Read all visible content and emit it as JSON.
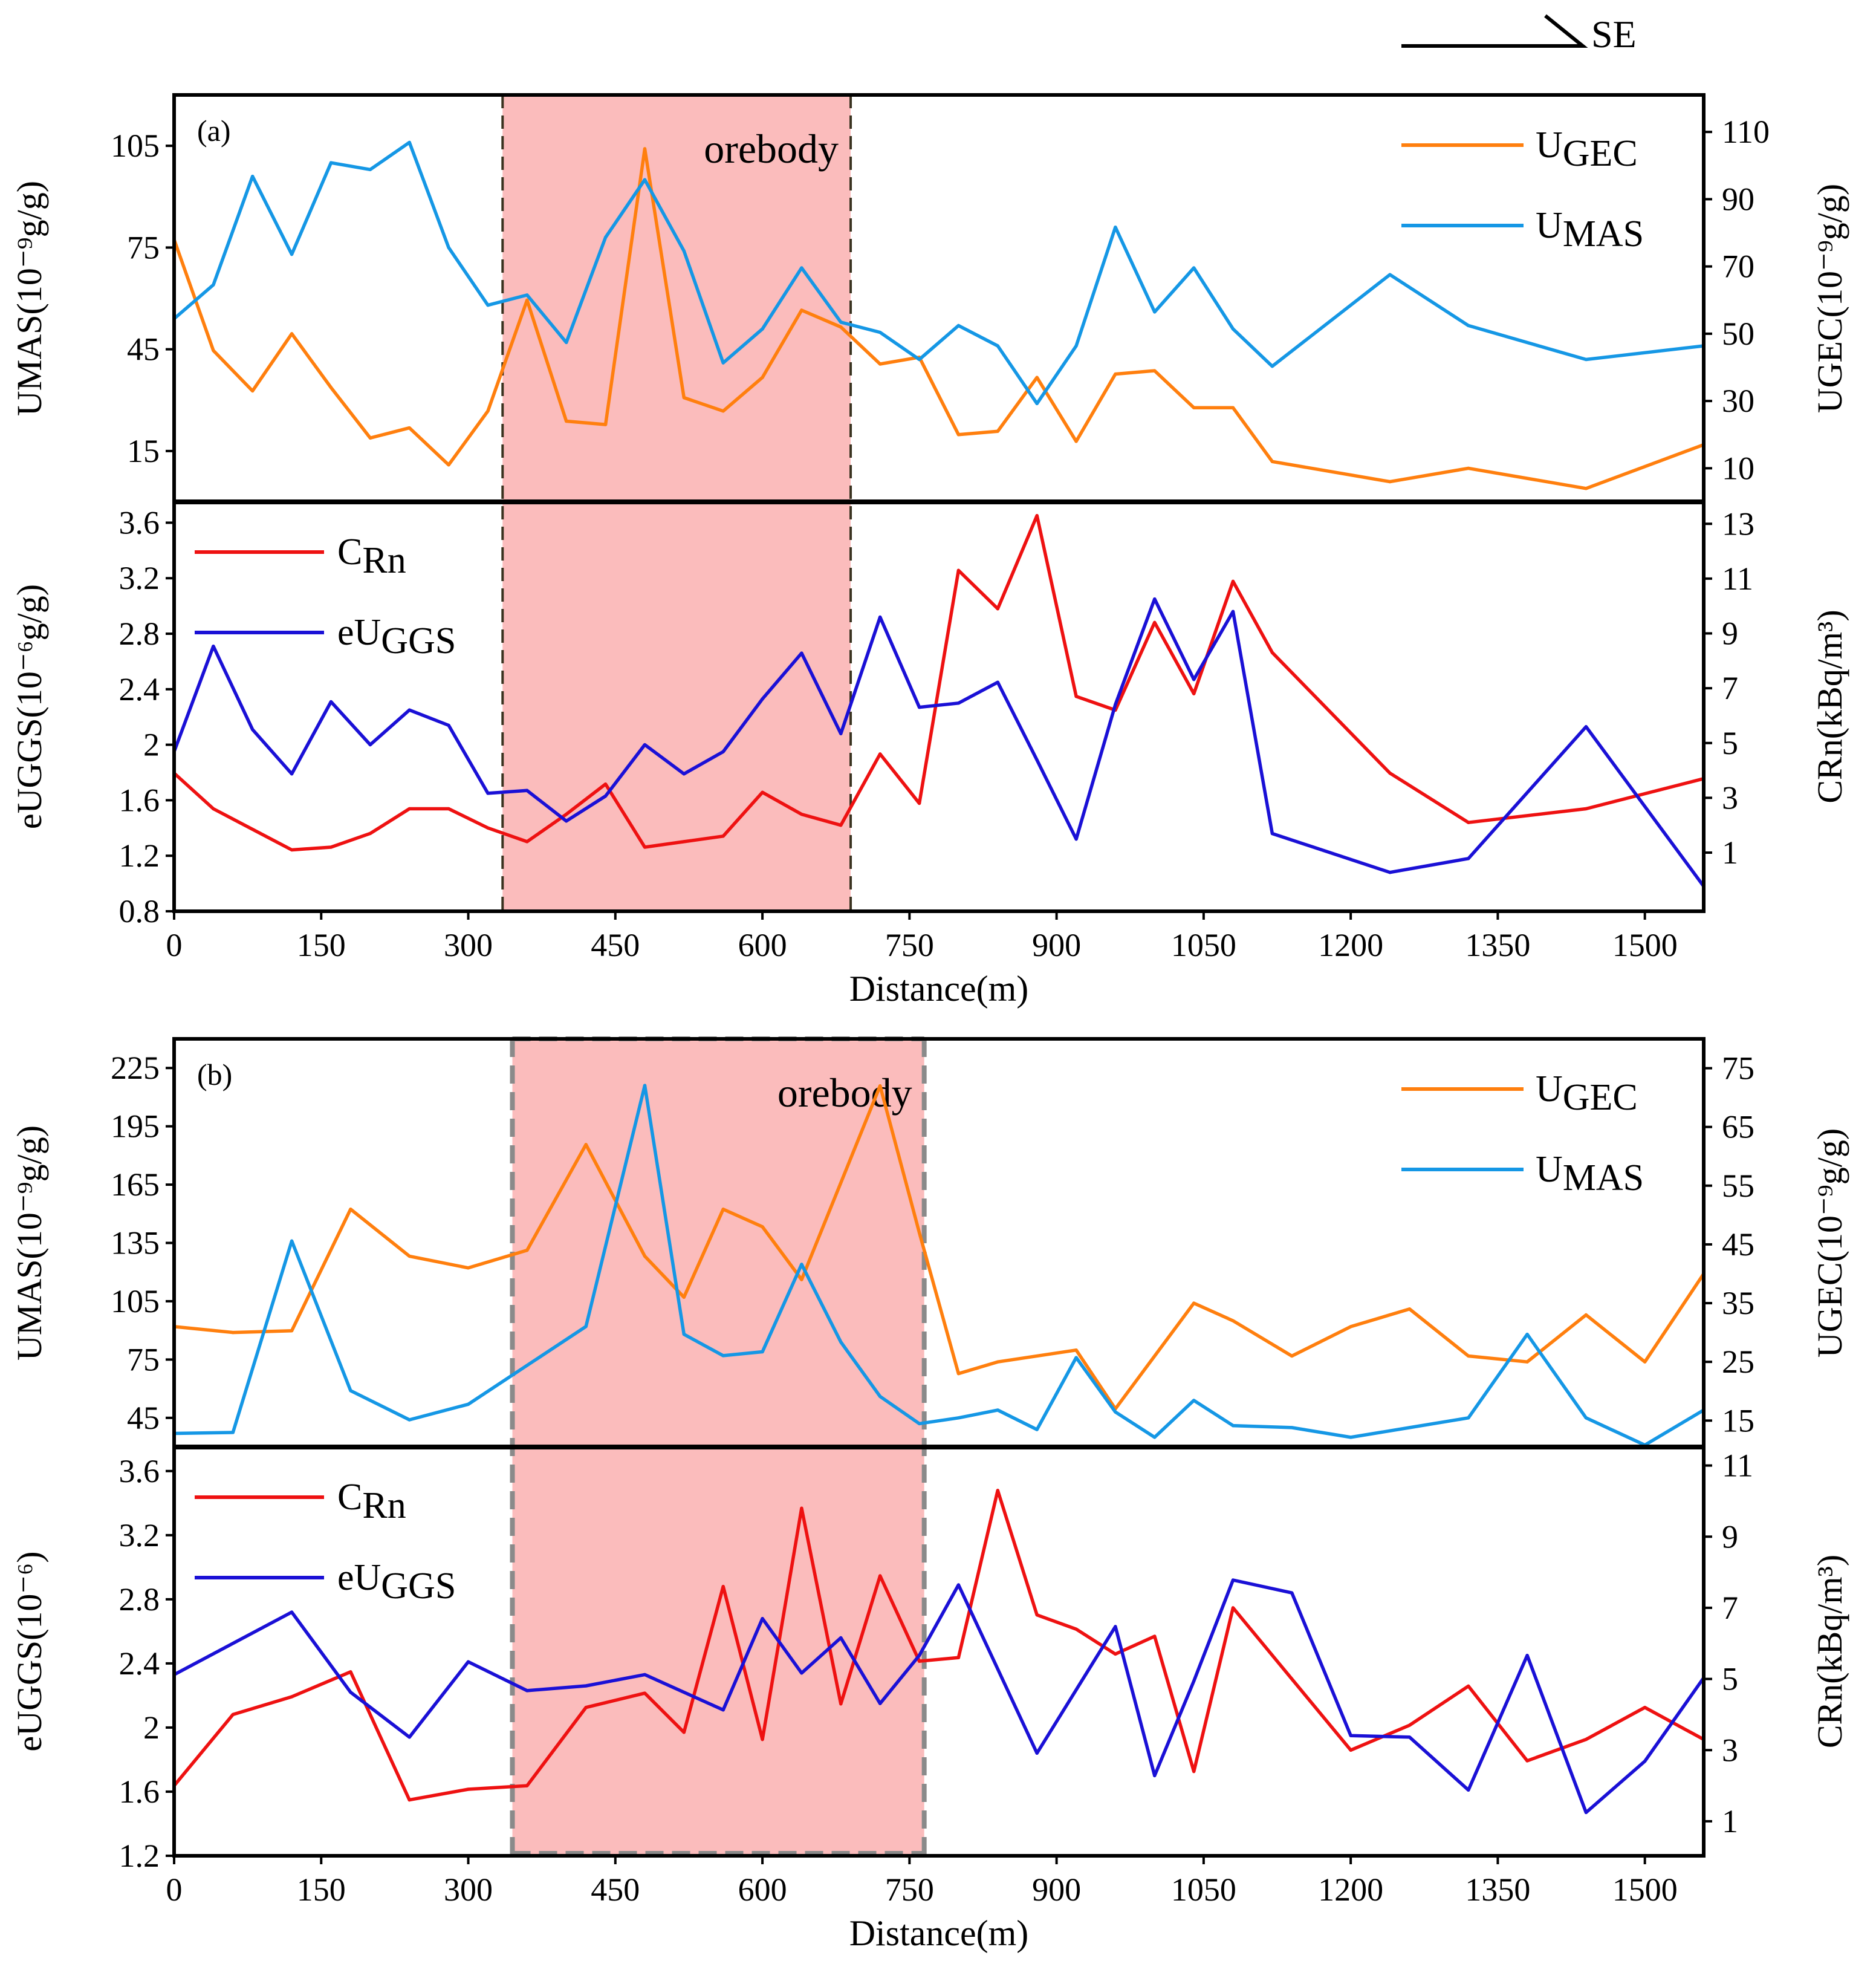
{
  "direction_label": "SE",
  "colors": {
    "u_gec": "#ff7f0e",
    "u_mas": "#1597e5",
    "c_rn": "#ee1111",
    "eu_ggs": "#1a10d6",
    "orebody_fill": "#fbbcbc",
    "frame": "#000000"
  },
  "chart_data": [
    {
      "type": "line",
      "panel_label": "(a)",
      "annotation": "orebody",
      "orebody_range": [
        335,
        690
      ],
      "xlabel": "Distance(m)",
      "x_ticks": [
        0,
        150,
        300,
        450,
        600,
        750,
        900,
        1050,
        1200,
        1350,
        1500
      ],
      "xlim": [
        0,
        1560
      ],
      "upper": {
        "left_axis": {
          "label": "UMAS(10⁻⁹g/g)",
          "ylim": [
            0,
            120
          ],
          "ticks": [
            15,
            45,
            75,
            105
          ]
        },
        "right_axis": {
          "label": "UGEC(10⁻⁹g/g)",
          "ylim": [
            0,
            121
          ],
          "ticks": [
            10,
            30,
            50,
            70,
            90,
            110
          ]
        },
        "series": [
          {
            "name": "UGEC",
            "legend": "U",
            "legend_sub": "GEC",
            "axis": "right",
            "color_key": "u_gec",
            "x": [
              0,
              40,
              80,
              120,
              160,
              200,
              240,
              280,
              320,
              360,
              400,
              440,
              480,
              520,
              560,
              600,
              640,
              680,
              720,
              760,
              800,
              840,
              880,
              920,
              960,
              1000,
              1040,
              1080,
              1120,
              1240,
              1320,
              1440,
              1560
            ],
            "y": [
              78,
              45,
              33,
              50,
              34,
              19,
              22,
              11,
              27,
              60,
              24,
              23,
              105,
              31,
              27,
              37,
              57,
              52,
              41,
              43,
              20,
              21,
              37,
              18,
              38,
              39,
              28,
              28,
              12,
              6,
              10,
              4,
              17
            ]
          },
          {
            "name": "UMAS",
            "legend": "U",
            "legend_sub": "MAS",
            "axis": "left",
            "color_key": "u_mas",
            "x": [
              0,
              40,
              80,
              120,
              160,
              200,
              240,
              280,
              320,
              360,
              400,
              440,
              480,
              520,
              560,
              600,
              640,
              680,
              720,
              760,
              800,
              840,
              880,
              920,
              960,
              1000,
              1040,
              1080,
              1120,
              1240,
              1320,
              1440,
              1560
            ],
            "y": [
              54,
              64,
              96,
              73,
              100,
              98,
              106,
              75,
              58,
              61,
              47,
              78,
              95,
              74,
              41,
              51,
              69,
              53,
              50,
              42,
              52,
              46,
              29,
              46,
              81,
              56,
              69,
              51,
              40,
              67,
              52,
              42,
              46
            ]
          }
        ]
      },
      "lower": {
        "left_axis": {
          "label": "eUGGS(10⁻⁶g/g)",
          "ylim": [
            0.8,
            3.75
          ],
          "ticks": [
            "0.8",
            "1.2",
            "1.6",
            "2",
            "2.4",
            "2.8",
            "3.2",
            "3.6"
          ]
        },
        "right_axis": {
          "label": "CRn(kBq/m³)",
          "ylim": [
            -1.14,
            13.8
          ],
          "ticks": [
            1,
            3,
            5,
            7,
            9,
            11,
            13
          ]
        },
        "series": [
          {
            "name": "CRn",
            "legend": "C",
            "legend_sub": "Rn",
            "axis": "right",
            "color_key": "c_rn",
            "x": [
              0,
              40,
              120,
              160,
              200,
              240,
              280,
              320,
              360,
              400,
              440,
              480,
              520,
              560,
              600,
              640,
              680,
              720,
              760,
              800,
              840,
              880,
              920,
              960,
              1000,
              1040,
              1080,
              1120,
              1240,
              1320,
              1440,
              1560
            ],
            "y": [
              3.9,
              2.6,
              1.1,
              1.2,
              1.7,
              2.6,
              2.6,
              1.9,
              1.4,
              2.4,
              3.5,
              1.2,
              1.4,
              1.6,
              3.2,
              2.4,
              2.0,
              4.6,
              2.8,
              11.3,
              9.9,
              13.3,
              6.7,
              6.2,
              9.4,
              6.8,
              10.9,
              8.3,
              3.9,
              2.1,
              2.6,
              3.7
            ]
          },
          {
            "name": "eUGGS",
            "legend": "eU",
            "legend_sub": "GGS",
            "axis": "left",
            "color_key": "eu_ggs",
            "x": [
              0,
              40,
              80,
              120,
              160,
              200,
              240,
              280,
              320,
              360,
              400,
              440,
              480,
              520,
              560,
              600,
              640,
              680,
              720,
              760,
              800,
              840,
              880,
              920,
              960,
              1000,
              1040,
              1080,
              1120,
              1240,
              1320,
              1440,
              1560
            ],
            "y": [
              1.95,
              2.71,
              2.11,
              1.79,
              2.31,
              2.0,
              2.25,
              2.14,
              1.65,
              1.67,
              1.45,
              1.63,
              2.0,
              1.79,
              1.95,
              2.33,
              2.66,
              2.08,
              2.92,
              2.27,
              2.3,
              2.45,
              1.89,
              1.32,
              2.29,
              3.05,
              2.47,
              2.96,
              1.36,
              1.08,
              1.18,
              2.13,
              0.98
            ]
          }
        ]
      }
    },
    {
      "type": "line",
      "panel_label": "(b)",
      "annotation": "orebody",
      "orebody_range": [
        345,
        765
      ],
      "xlabel": "Distance(m)",
      "x_ticks": [
        0,
        150,
        300,
        450,
        600,
        750,
        900,
        1050,
        1200,
        1350,
        1500
      ],
      "xlim": [
        0,
        1560
      ],
      "upper": {
        "left_axis": {
          "label": "UMAS(10⁻⁹g/g)",
          "ylim": [
            30,
            240
          ],
          "ticks": [
            45,
            75,
            105,
            135,
            165,
            195,
            225
          ]
        },
        "right_axis": {
          "label": "UGEC(10⁻⁹g/g)",
          "ylim": [
            10.5,
            80
          ],
          "ticks": [
            15,
            25,
            35,
            45,
            55,
            65,
            75
          ]
        },
        "series": [
          {
            "name": "UGEC",
            "legend": "U",
            "legend_sub": "GEC",
            "axis": "right",
            "color_key": "u_gec",
            "x": [
              0,
              60,
              120,
              180,
              240,
              300,
              360,
              420,
              480,
              520,
              560,
              600,
              640,
              720,
              760,
              800,
              840,
              920,
              960,
              1040,
              1080,
              1140,
              1200,
              1260,
              1320,
              1380,
              1440,
              1500,
              1560
            ],
            "y": [
              31,
              30,
              30.3,
              51,
              43,
              41,
              44,
              62,
              43,
              36,
              51,
              48,
              39,
              72,
              47,
              23,
              25,
              27,
              17,
              35,
              32,
              26,
              31,
              34,
              26,
              25,
              33,
              25,
              40
            ]
          },
          {
            "name": "UMAS",
            "legend": "U",
            "legend_sub": "MAS",
            "axis": "left",
            "color_key": "u_mas",
            "x": [
              0,
              60,
              120,
              180,
              240,
              300,
              360,
              420,
              480,
              520,
              560,
              600,
              640,
              680,
              720,
              760,
              800,
              840,
              880,
              920,
              960,
              1000,
              1040,
              1080,
              1140,
              1200,
              1260,
              1320,
              1380,
              1440,
              1500,
              1560
            ],
            "y": [
              37,
              37.5,
              136,
              59,
              44,
              52,
              72,
              92,
              216,
              88,
              77,
              79,
              124,
              84,
              56,
              42,
              45,
              49,
              39,
              76,
              48,
              35,
              54,
              41,
              40,
              35,
              40,
              45,
              88,
              45,
              31,
              49
            ]
          }
        ]
      },
      "lower": {
        "left_axis": {
          "label": "eUGGS(10⁻⁶)",
          "ylim": [
            1.2,
            3.75
          ],
          "ticks": [
            "1.2",
            "1.6",
            "2",
            "2.4",
            "2.8",
            "3.2",
            "3.6"
          ]
        },
        "right_axis": {
          "label": "CRn(kBq/m³)",
          "ylim": [
            0.03,
            11.52
          ],
          "ticks": [
            1,
            3,
            5,
            7,
            9,
            11
          ]
        },
        "series": [
          {
            "name": "CRn",
            "legend": "C",
            "legend_sub": "Rn",
            "axis": "right",
            "color_key": "c_rn",
            "x": [
              0,
              60,
              120,
              180,
              240,
              300,
              360,
              420,
              480,
              520,
              560,
              600,
              640,
              680,
              720,
              760,
              800,
              840,
              880,
              920,
              960,
              1000,
              1040,
              1080,
              1140,
              1200,
              1260,
              1320,
              1380,
              1440,
              1500,
              1560
            ],
            "y": [
              2.0,
              4.0,
              4.5,
              5.2,
              1.6,
              1.9,
              2.0,
              4.2,
              4.6,
              3.5,
              7.6,
              3.3,
              9.8,
              4.3,
              7.9,
              5.5,
              5.6,
              10.3,
              6.8,
              6.4,
              5.7,
              6.2,
              2.4,
              7.0,
              5.0,
              3.0,
              3.7,
              4.8,
              2.7,
              3.3,
              4.2,
              3.3
            ]
          },
          {
            "name": "eUGGS",
            "legend": "eU",
            "legend_sub": "GGS",
            "axis": "left",
            "color_key": "eu_ggs",
            "x": [
              0,
              120,
              180,
              240,
              300,
              360,
              420,
              480,
              560,
              600,
              640,
              680,
              720,
              760,
              800,
              880,
              960,
              1000,
              1040,
              1080,
              1140,
              1200,
              1260,
              1320,
              1380,
              1440,
              1500,
              1560
            ],
            "y": [
              2.33,
              2.72,
              2.22,
              1.94,
              2.41,
              2.23,
              2.26,
              2.33,
              2.11,
              2.68,
              2.34,
              2.56,
              2.15,
              2.45,
              2.89,
              1.84,
              2.63,
              1.7,
              2.29,
              2.92,
              2.84,
              1.95,
              1.94,
              1.61,
              2.45,
              1.47,
              1.79,
              2.31
            ]
          }
        ]
      }
    }
  ]
}
